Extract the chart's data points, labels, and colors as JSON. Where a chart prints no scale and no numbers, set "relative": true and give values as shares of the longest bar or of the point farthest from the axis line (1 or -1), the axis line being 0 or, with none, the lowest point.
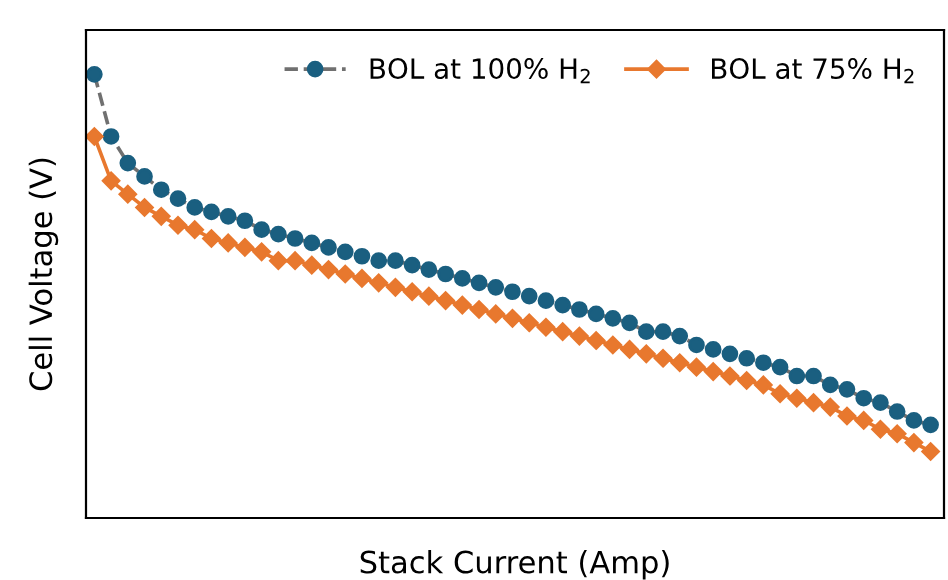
{
  "chart_data": {
    "type": "line",
    "relative": true,
    "xlabel": "Stack Current (Amp)",
    "ylabel": "Cell Voltage (V)",
    "legend": "top right",
    "grid": false,
    "categories": [
      null,
      null,
      null,
      null,
      null,
      null,
      null,
      null,
      null,
      null,
      null,
      null,
      null,
      null,
      null,
      null,
      null,
      null,
      null,
      null,
      null,
      null,
      null,
      null,
      null,
      null,
      null,
      null,
      null,
      null,
      null,
      null,
      null,
      null,
      null,
      null,
      null,
      null,
      null,
      null,
      null,
      null,
      null,
      null,
      null,
      null,
      null,
      null,
      null,
      null,
      null
    ],
    "series": [
      {
        "name": "BOL at 100% H$_{2}$",
        "color": "#1a5f80",
        "marker": "circle",
        "line_style": "dashed",
        "values": [
          1.0,
          0.86,
          0.8,
          0.77,
          0.74,
          0.72,
          0.7,
          0.69,
          0.68,
          0.67,
          0.65,
          0.64,
          0.63,
          0.62,
          0.61,
          0.6,
          0.59,
          0.58,
          0.58,
          0.57,
          0.56,
          0.55,
          0.54,
          0.53,
          0.52,
          0.51,
          0.5,
          0.49,
          0.48,
          0.47,
          0.46,
          0.45,
          0.44,
          0.42,
          0.42,
          0.41,
          0.39,
          0.38,
          0.37,
          0.36,
          0.35,
          0.34,
          0.32,
          0.32,
          0.3,
          0.29,
          0.27,
          0.26,
          0.24,
          0.22,
          0.21
        ]
      },
      {
        "name": "BOL at 75% H$_{2}$",
        "color": "#e8782e",
        "marker": "diamond",
        "line_style": "solid",
        "values": [
          0.86,
          0.76,
          0.73,
          0.7,
          0.68,
          0.66,
          0.65,
          0.63,
          0.62,
          0.61,
          0.6,
          0.58,
          0.58,
          0.57,
          0.56,
          0.55,
          0.54,
          0.53,
          0.52,
          0.51,
          0.5,
          0.49,
          0.48,
          0.47,
          0.46,
          0.45,
          0.44,
          0.43,
          0.42,
          0.41,
          0.4,
          0.39,
          0.38,
          0.37,
          0.36,
          0.35,
          0.34,
          0.33,
          0.32,
          0.31,
          0.3,
          0.28,
          0.27,
          0.26,
          0.25,
          0.23,
          0.22,
          0.2,
          0.19,
          0.17,
          0.15
        ]
      }
    ]
  }
}
